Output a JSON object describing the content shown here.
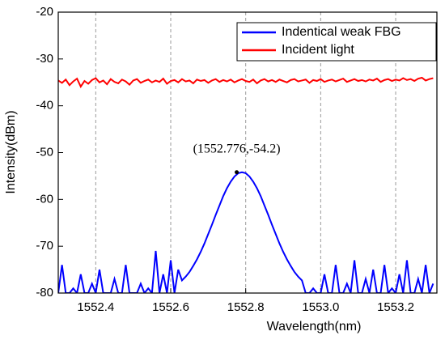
{
  "chart_data": {
    "type": "line",
    "xlabel": "Wavelength(nm)",
    "ylabel": "Intensity(dBm)",
    "xlim": [
      1552.3,
      1553.31
    ],
    "ylim": [
      -80,
      -20
    ],
    "xticks": [
      1552.4,
      1552.6,
      1552.8,
      {
        "value": 1553.0,
        "label": "1553.0"
      },
      1553.2
    ],
    "yticks": [
      -20,
      -30,
      -40,
      -50,
      -60,
      -70,
      -80
    ],
    "grid": true,
    "legend": "upper right",
    "annotations": [
      {
        "text": "(1552.776,-54.2)",
        "x": 1552.776,
        "y": -54.2
      }
    ],
    "x": [
      1552.3,
      1552.31,
      1552.32,
      1552.33,
      1552.34,
      1552.35,
      1552.36,
      1552.37,
      1552.38,
      1552.39,
      1552.4,
      1552.41,
      1552.42,
      1552.43,
      1552.44,
      1552.45,
      1552.46,
      1552.47,
      1552.48,
      1552.49,
      1552.5,
      1552.51,
      1552.52,
      1552.53,
      1552.54,
      1552.55,
      1552.56,
      1552.57,
      1552.58,
      1552.59,
      1552.6,
      1552.61,
      1552.62,
      1552.63,
      1552.64,
      1552.65,
      1552.66,
      1552.67,
      1552.68,
      1552.69,
      1552.7,
      1552.71,
      1552.72,
      1552.73,
      1552.74,
      1552.75,
      1552.76,
      1552.77,
      1552.78,
      1552.79,
      1552.8,
      1552.81,
      1552.82,
      1552.83,
      1552.84,
      1552.85,
      1552.86,
      1552.87,
      1552.88,
      1552.89,
      1552.9,
      1552.91,
      1552.92,
      1552.93,
      1552.94,
      1552.95,
      1552.96,
      1552.97,
      1552.98,
      1552.99,
      1553.0,
      1553.01,
      1553.02,
      1553.03,
      1553.04,
      1553.05,
      1553.06,
      1553.07,
      1553.08,
      1553.09,
      1553.1,
      1553.11,
      1553.12,
      1553.13,
      1553.14,
      1553.15,
      1553.16,
      1553.17,
      1553.18,
      1553.19,
      1553.2,
      1553.21,
      1553.22,
      1553.23,
      1553.24,
      1553.25,
      1553.26,
      1553.27,
      1553.28,
      1553.29,
      1553.3
    ],
    "series": [
      {
        "name": "Indentical weak FBG",
        "color": "#0000ff",
        "values": [
          -80,
          -74,
          -80,
          -80,
          -79,
          -80,
          -76,
          -80,
          -80,
          -78,
          -80,
          -75,
          -80,
          -80,
          -80,
          -77,
          -80,
          -80,
          -74,
          -80,
          -80,
          -80,
          -78,
          -80,
          -79,
          -80,
          -71,
          -80,
          -76,
          -80,
          -73,
          -80,
          -75,
          -77.3,
          -76.5,
          -75.5,
          -74.2,
          -72.8,
          -71.2,
          -69.4,
          -67.4,
          -65.4,
          -63.3,
          -61.3,
          -59.3,
          -57.6,
          -56.2,
          -55.1,
          -54.4,
          -54.2,
          -54.4,
          -55.1,
          -56.2,
          -57.6,
          -59.3,
          -61.3,
          -63.3,
          -65.4,
          -67.4,
          -69.4,
          -71.2,
          -72.8,
          -74.2,
          -75.5,
          -76.5,
          -77.3,
          -80,
          -80,
          -79,
          -80,
          -80,
          -76,
          -80,
          -80,
          -74,
          -80,
          -80,
          -78,
          -80,
          -73,
          -80,
          -80,
          -77,
          -80,
          -75,
          -80,
          -80,
          -74,
          -80,
          -79,
          -80,
          -76,
          -80,
          -73,
          -80,
          -80,
          -77,
          -80,
          -74,
          -80,
          -78
        ]
      },
      {
        "name": "Incident light",
        "color": "#ff0000",
        "values": [
          -34.6,
          -35.1,
          -34.4,
          -35.6,
          -34.8,
          -34.2,
          -35.9,
          -34.7,
          -35.3,
          -34.5,
          -34.1,
          -35.0,
          -34.6,
          -35.4,
          -34.3,
          -34.9,
          -35.2,
          -34.4,
          -34.8,
          -35.5,
          -34.6,
          -34.3,
          -35.1,
          -34.7,
          -34.4,
          -35.0,
          -34.6,
          -34.9,
          -34.2,
          -35.3,
          -34.7,
          -34.5,
          -35.0,
          -34.3,
          -34.8,
          -34.6,
          -35.2,
          -34.4,
          -34.7,
          -34.5,
          -35.1,
          -34.6,
          -34.3,
          -34.9,
          -34.5,
          -34.8,
          -34.4,
          -35.0,
          -34.6,
          -34.3,
          -34.7,
          -34.9,
          -34.4,
          -35.2,
          -34.6,
          -34.3,
          -34.8,
          -34.5,
          -34.9,
          -34.4,
          -34.7,
          -35.0,
          -34.5,
          -34.3,
          -34.8,
          -34.6,
          -34.4,
          -35.1,
          -34.5,
          -34.7,
          -34.3,
          -34.9,
          -34.6,
          -34.4,
          -34.8,
          -34.5,
          -34.2,
          -34.9,
          -34.6,
          -34.3,
          -34.7,
          -34.5,
          -34.8,
          -34.4,
          -34.6,
          -34.2,
          -34.9,
          -34.5,
          -34.3,
          -34.7,
          -34.4,
          -34.6,
          -34.1,
          -34.5,
          -34.3,
          -34.7,
          -34.2,
          -34.0,
          -34.6,
          -34.3,
          -34.1
        ]
      }
    ]
  }
}
